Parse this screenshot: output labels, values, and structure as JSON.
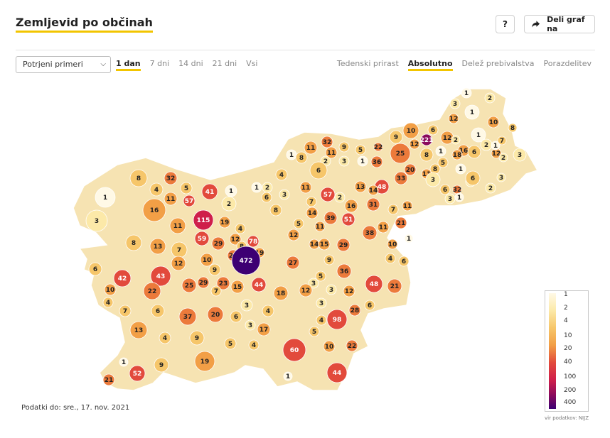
{
  "header": {
    "title": "Zemljevid po občinah",
    "help_label": "?",
    "share_label": "Deli graf na"
  },
  "controls": {
    "metric_select": {
      "selected": "Potrjeni primeri"
    },
    "ranges": [
      {
        "label": "1 dan",
        "active": true
      },
      {
        "label": "7 dni",
        "active": false
      },
      {
        "label": "14 dni",
        "active": false
      },
      {
        "label": "21 dni",
        "active": false
      },
      {
        "label": "Vsi",
        "active": false
      }
    ],
    "modes": [
      {
        "label": "Tedenski prirast",
        "active": false
      },
      {
        "label": "Absolutno",
        "active": true
      },
      {
        "label": "Delež prebivalstva",
        "active": false
      },
      {
        "label": "Porazdelitev",
        "active": false
      }
    ]
  },
  "legend": {
    "labels": [
      "1",
      "2",
      "4",
      "10",
      "20",
      "40",
      "100",
      "200",
      "400"
    ],
    "colors": [
      "#fff9e6",
      "#fce9a8",
      "#f6c66a",
      "#f29f46",
      "#ec7a3b",
      "#e24a3c",
      "#cf1f4a",
      "#8b0a5c",
      "#3d0073"
    ]
  },
  "footer": {
    "date_label": "Podatki do: sre., 17. nov. 2021",
    "source_label": "vir podatkov: NIJZ"
  },
  "map": {
    "regions": [
      {
        "v": 1
      },
      {
        "v": 3
      },
      {
        "v": 8
      },
      {
        "v": 16
      },
      {
        "v": 4
      },
      {
        "v": 11
      },
      {
        "v": 32
      },
      {
        "v": 5
      },
      {
        "v": 57
      },
      {
        "v": 41
      },
      {
        "v": 1
      },
      {
        "v": 2
      },
      {
        "v": 11
      },
      {
        "v": 115
      },
      {
        "v": 19
      },
      {
        "v": 12
      },
      {
        "v": 8
      },
      {
        "v": 13
      },
      {
        "v": 7
      },
      {
        "v": 59
      },
      {
        "v": 29
      },
      {
        "v": 4
      },
      {
        "v": 20
      },
      {
        "v": 8
      },
      {
        "v": 78
      },
      {
        "v": 19
      },
      {
        "v": 472
      },
      {
        "v": 10
      },
      {
        "v": 12
      },
      {
        "v": 6
      },
      {
        "v": 42
      },
      {
        "v": 43
      },
      {
        "v": 22
      },
      {
        "v": 10
      },
      {
        "v": 4
      },
      {
        "v": 7
      },
      {
        "v": 6
      },
      {
        "v": 25
      },
      {
        "v": 29
      },
      {
        "v": 9
      },
      {
        "v": 23
      },
      {
        "v": 7
      },
      {
        "v": 15
      },
      {
        "v": 44
      },
      {
        "v": 18
      },
      {
        "v": 37
      },
      {
        "v": 20
      },
      {
        "v": 6
      },
      {
        "v": 3
      },
      {
        "v": 4
      },
      {
        "v": 13
      },
      {
        "v": 4
      },
      {
        "v": 9
      },
      {
        "v": 3
      },
      {
        "v": 17
      },
      {
        "v": 5
      },
      {
        "v": 4
      },
      {
        "v": 19
      },
      {
        "v": 9
      },
      {
        "v": 1
      },
      {
        "v": 52
      },
      {
        "v": 21
      },
      {
        "v": 1
      },
      {
        "v": 2
      },
      {
        "v": 3
      },
      {
        "v": 4
      },
      {
        "v": 1
      },
      {
        "v": 6
      },
      {
        "v": 8
      },
      {
        "v": 11
      },
      {
        "v": 7
      },
      {
        "v": 5
      },
      {
        "v": 14
      },
      {
        "v": 12
      },
      {
        "v": 11
      },
      {
        "v": 57
      },
      {
        "v": 2
      },
      {
        "v": 13
      },
      {
        "v": 48
      },
      {
        "v": 16
      },
      {
        "v": 39
      },
      {
        "v": 51
      },
      {
        "v": 31
      },
      {
        "v": 14
      },
      {
        "v": 7
      },
      {
        "v": 11
      },
      {
        "v": 38
      },
      {
        "v": 11
      },
      {
        "v": 21
      },
      {
        "v": 14
      },
      {
        "v": 19
      },
      {
        "v": 15
      },
      {
        "v": 29
      },
      {
        "v": 27
      },
      {
        "v": 9
      },
      {
        "v": 5
      },
      {
        "v": 36
      },
      {
        "v": 3
      },
      {
        "v": 12
      },
      {
        "v": 3
      },
      {
        "v": 3
      },
      {
        "v": 12
      },
      {
        "v": 1
      },
      {
        "v": 48
      },
      {
        "v": 21
      },
      {
        "v": 10
      },
      {
        "v": 4
      },
      {
        "v": 6
      },
      {
        "v": 98
      },
      {
        "v": 28
      },
      {
        "v": 6
      },
      {
        "v": 4
      },
      {
        "v": 5
      },
      {
        "v": 60
      },
      {
        "v": 10
      },
      {
        "v": 22
      },
      {
        "v": 44
      },
      {
        "v": 1
      },
      {
        "v": 8
      },
      {
        "v": 11
      },
      {
        "v": 32
      },
      {
        "v": 11
      },
      {
        "v": 9
      },
      {
        "v": 5
      },
      {
        "v": 3
      },
      {
        "v": 2
      },
      {
        "v": 1
      },
      {
        "v": 6
      },
      {
        "v": 36
      },
      {
        "v": 22
      },
      {
        "v": 9
      },
      {
        "v": 10
      },
      {
        "v": 25
      },
      {
        "v": 221
      },
      {
        "v": 12
      },
      {
        "v": 5
      },
      {
        "v": 8
      },
      {
        "v": 33
      },
      {
        "v": 20
      },
      {
        "v": 11
      },
      {
        "v": 8
      },
      {
        "v": 6
      },
      {
        "v": 3
      },
      {
        "v": 32
      },
      {
        "v": 2
      },
      {
        "v": 1
      },
      {
        "v": 3
      },
      {
        "v": 1
      },
      {
        "v": 3
      },
      {
        "v": 1
      },
      {
        "v": 2
      },
      {
        "v": 10
      },
      {
        "v": 8
      },
      {
        "v": 1
      },
      {
        "v": 16
      },
      {
        "v": 12
      },
      {
        "v": 6
      },
      {
        "v": 18
      },
      {
        "v": 2
      },
      {
        "v": 7
      },
      {
        "v": 3
      },
      {
        "v": 12
      },
      {
        "v": 2
      },
      {
        "v": 1
      },
      {
        "v": 6
      },
      {
        "v": 2
      },
      {
        "v": 12
      },
      {
        "v": 1
      },
      {
        "v": 2
      },
      {
        "v": 6
      },
      {
        "v": 1
      },
      {
        "v": 3
      },
      {
        "v": 2
      },
      {
        "v": 1
      }
    ]
  }
}
